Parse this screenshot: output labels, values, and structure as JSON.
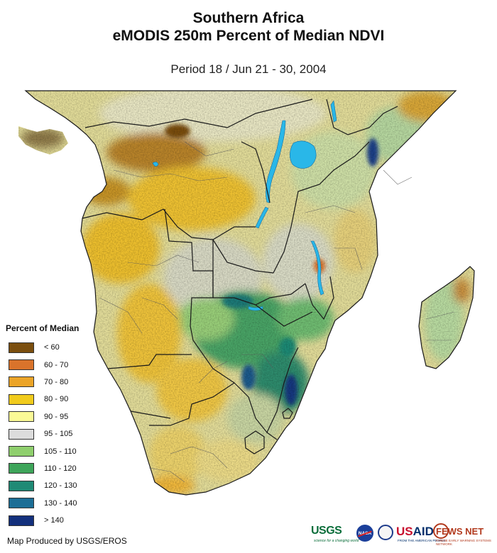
{
  "header": {
    "title_line1": "Southern Africa",
    "title_line2": "eMODIS 250m Percent of Median NDVI",
    "period": "Period 18 / Jun 21 - 30, 2004"
  },
  "legend": {
    "title": "Percent of Median",
    "items": [
      {
        "label": "< 60",
        "color": "#7a4e0e"
      },
      {
        "label": "60 - 70",
        "color": "#d9732b"
      },
      {
        "label": "70 - 80",
        "color": "#eba428"
      },
      {
        "label": "80 - 90",
        "color": "#f1cb1c"
      },
      {
        "label": "90 - 95",
        "color": "#fbfa96"
      },
      {
        "label": "95 - 105",
        "color": "#dcdcdc"
      },
      {
        "label": "105 - 110",
        "color": "#8fcf6d"
      },
      {
        "label": "110 - 120",
        "color": "#3ea55a"
      },
      {
        "label": "120 - 130",
        "color": "#1f8a75"
      },
      {
        "label": "130 - 140",
        "color": "#1c6e96"
      },
      {
        "label": "> 140",
        "color": "#13307c"
      }
    ]
  },
  "map": {
    "water_color": "#29b7e8",
    "border_color": "#1a1a1a",
    "ocean_color": "#ffffff"
  },
  "footer": {
    "credit": "Map Produced by USGS/EROS",
    "logos": {
      "usgs": "USGS",
      "usgs_tagline": "science for a changing world",
      "nasa": "NASA",
      "usaid_us": "US",
      "usaid_aid": "AID",
      "usaid_tagline": "FROM THE AMERICAN PEOPLE",
      "fews": "FEWS NET",
      "fews_tagline": "FAMINE EARLY WARNING SYSTEMS NETWORK"
    }
  }
}
